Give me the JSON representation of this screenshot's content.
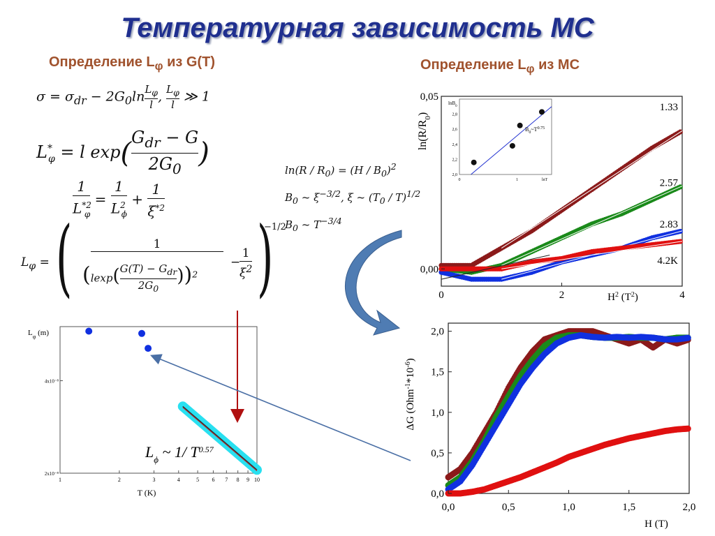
{
  "slide": {
    "title": "Температурная зависимость МС",
    "left_heading": "Определение Lφ из G(T)",
    "right_heading": "Определение Lφ из МС",
    "formulas": {
      "f1": "σ = σdr − 2G0 ln(Lφ/l), Lφ/l ≫ 1",
      "f2": "L*φ = l exp((Gdr − G)/(2G0))",
      "f3": "1/L*²φ = 1/L²φ + 1/ξ*²",
      "f4": "Lφ = (1/(l exp((G(T) − Gdr)/(2G0)))² − 1/ξ²)^(−1/2)",
      "f5": "ln(R/R0) = (H/B0)²",
      "f6": "B0 ~ ξ^(−3/2), ξ ~ (T0/T)^(1/2)",
      "f7": "B0 ~ T^(−3/4)",
      "fit": "Lφ ~ 1/T^0.57"
    },
    "colors": {
      "title": "#1f2f8f",
      "heading": "#a0522d",
      "dark_red": "#8b1a1a",
      "green": "#1a8a1a",
      "blue": "#1030e0",
      "red": "#e01010",
      "cyan": "#29e0f0",
      "arrow": "#4a6fa5"
    }
  },
  "chart_data": [
    {
      "id": "lphi_vs_T",
      "type": "scatter",
      "xlabel": "T (K)",
      "ylabel": "Lφ (m)",
      "xscale": "log",
      "yscale": "log",
      "xlim": [
        1,
        10
      ],
      "ylim": [
        2e-08,
        6e-08
      ],
      "x_ticks": [
        "1",
        "2",
        "3",
        "4",
        "5",
        "6",
        "7",
        "8",
        "9",
        "10"
      ],
      "y_ticks": [
        "4x10⁻⁸",
        "2x10⁻⁸"
      ],
      "series": [
        {
          "points": [
            [
              1.4,
              5.8e-08
            ],
            [
              2.6,
              5.7e-08
            ],
            [
              2.8,
              5.1e-08
            ]
          ]
        }
      ],
      "fit_line": {
        "from": [
          4.2,
          3.3e-08
        ],
        "to": [
          10,
          2.05e-08
        ]
      },
      "annotation": "Lφ ~ 1/T^0.57"
    },
    {
      "id": "lnR_vs_H2",
      "type": "scatter",
      "xlabel": "H² (T²)",
      "ylabel": "ln(R/R0)",
      "xlim": [
        0,
        4
      ],
      "ylim": [
        -0.005,
        0.05
      ],
      "x_ticks": [
        "0",
        "2",
        "4"
      ],
      "y_ticks": [
        "0,05",
        "0,00"
      ],
      "series": [
        {
          "name": "1.33",
          "x": [
            0,
            0.5,
            1,
            1.5,
            2,
            2.5,
            3,
            3.5,
            4
          ],
          "y": [
            0.001,
            0.001,
            0.006,
            0.011,
            0.017,
            0.023,
            0.029,
            0.035,
            0.04
          ]
        },
        {
          "name": "2.57",
          "x": [
            0,
            0.5,
            1,
            1.5,
            2,
            2.5,
            3,
            3.5,
            4
          ],
          "y": [
            0.0,
            -0.001,
            0.001,
            0.005,
            0.009,
            0.013,
            0.016,
            0.02,
            0.024
          ]
        },
        {
          "name": "2.83",
          "x": [
            0,
            0.5,
            1,
            1.5,
            2,
            2.5,
            3,
            3.5,
            4
          ],
          "y": [
            -0.001,
            -0.003,
            -0.003,
            -0.001,
            0.002,
            0.004,
            0.006,
            0.009,
            0.011
          ]
        },
        {
          "name": "4.2K",
          "x": [
            0,
            0.5,
            1,
            1.5,
            2,
            2.5,
            3,
            3.5,
            4
          ],
          "y": [
            0.0,
            0.0,
            0.0,
            0.002,
            0.003,
            0.005,
            0.006,
            0.007,
            0.008
          ]
        }
      ]
    },
    {
      "id": "lnB0_vs_lnT_inset",
      "type": "scatter",
      "xlabel": "lnT",
      "ylabel": "lnB0",
      "xlim": [
        0,
        1.6
      ],
      "ylim": [
        2.0,
        3.0
      ],
      "x_ticks": [
        "0",
        "1",
        "lnT"
      ],
      "y_ticks": [
        "2,8",
        "2,6",
        "2,4",
        "2,2",
        "2,0"
      ],
      "series": [
        {
          "x": [
            0.25,
            0.92,
            1.05,
            1.43
          ],
          "y": [
            2.16,
            2.38,
            2.65,
            2.83
          ]
        }
      ],
      "fit_line": {
        "from": [
          0.2,
          2.0
        ],
        "to": [
          1.6,
          2.9
        ]
      },
      "annotation": "B0~T^0.75"
    },
    {
      "id": "dG_vs_H",
      "type": "scatter",
      "xlabel": "H (T)",
      "ylabel": "ΔG (Ohm⁻¹*10⁻⁶)",
      "xlim": [
        0,
        2
      ],
      "ylim": [
        0,
        2.1
      ],
      "x_ticks": [
        "0,0",
        "0,5",
        "1,0",
        "1,5",
        "2,0"
      ],
      "y_ticks": [
        "2,0",
        "1,5",
        "1,0",
        "0,5",
        "0,0"
      ],
      "series": [
        {
          "color": "dark_red",
          "x": [
            0,
            0.1,
            0.2,
            0.3,
            0.4,
            0.5,
            0.6,
            0.7,
            0.8,
            0.9,
            1.0,
            1.1,
            1.2,
            1.3,
            1.4,
            1.5,
            1.6,
            1.7,
            1.8,
            1.9,
            2.0
          ],
          "y": [
            0.2,
            0.3,
            0.5,
            0.75,
            1.0,
            1.3,
            1.55,
            1.75,
            1.9,
            1.95,
            2.0,
            2.0,
            2.0,
            1.95,
            1.9,
            1.85,
            1.9,
            1.8,
            1.9,
            1.85,
            1.9
          ]
        },
        {
          "color": "green",
          "x": [
            0,
            0.1,
            0.2,
            0.3,
            0.4,
            0.5,
            0.6,
            0.7,
            0.8,
            0.9,
            1.0,
            1.1,
            1.2,
            1.3,
            1.4,
            1.5,
            1.6,
            1.7,
            1.8,
            1.9,
            2.0
          ],
          "y": [
            0.1,
            0.2,
            0.4,
            0.65,
            0.95,
            1.2,
            1.45,
            1.65,
            1.82,
            1.92,
            1.95,
            1.95,
            1.93,
            1.92,
            1.92,
            1.93,
            1.92,
            1.92,
            1.9,
            1.92,
            1.92
          ]
        },
        {
          "color": "blue",
          "x": [
            0,
            0.1,
            0.2,
            0.3,
            0.4,
            0.5,
            0.6,
            0.7,
            0.8,
            0.9,
            1.0,
            1.1,
            1.2,
            1.3,
            1.4,
            1.5,
            1.6,
            1.7,
            1.8,
            1.9,
            2.0
          ],
          "y": [
            0.05,
            0.15,
            0.35,
            0.6,
            0.85,
            1.1,
            1.35,
            1.55,
            1.72,
            1.85,
            1.92,
            1.95,
            1.93,
            1.92,
            1.93,
            1.92,
            1.93,
            1.92,
            1.9,
            1.9,
            1.92
          ]
        },
        {
          "color": "red",
          "x": [
            0,
            0.1,
            0.2,
            0.3,
            0.4,
            0.5,
            0.6,
            0.7,
            0.8,
            0.9,
            1.0,
            1.1,
            1.2,
            1.3,
            1.4,
            1.5,
            1.6,
            1.7,
            1.8,
            1.9,
            2.0
          ],
          "y": [
            0.0,
            0.0,
            0.02,
            0.05,
            0.1,
            0.15,
            0.2,
            0.26,
            0.32,
            0.38,
            0.45,
            0.5,
            0.55,
            0.6,
            0.64,
            0.68,
            0.71,
            0.74,
            0.77,
            0.79,
            0.8
          ]
        }
      ]
    }
  ]
}
